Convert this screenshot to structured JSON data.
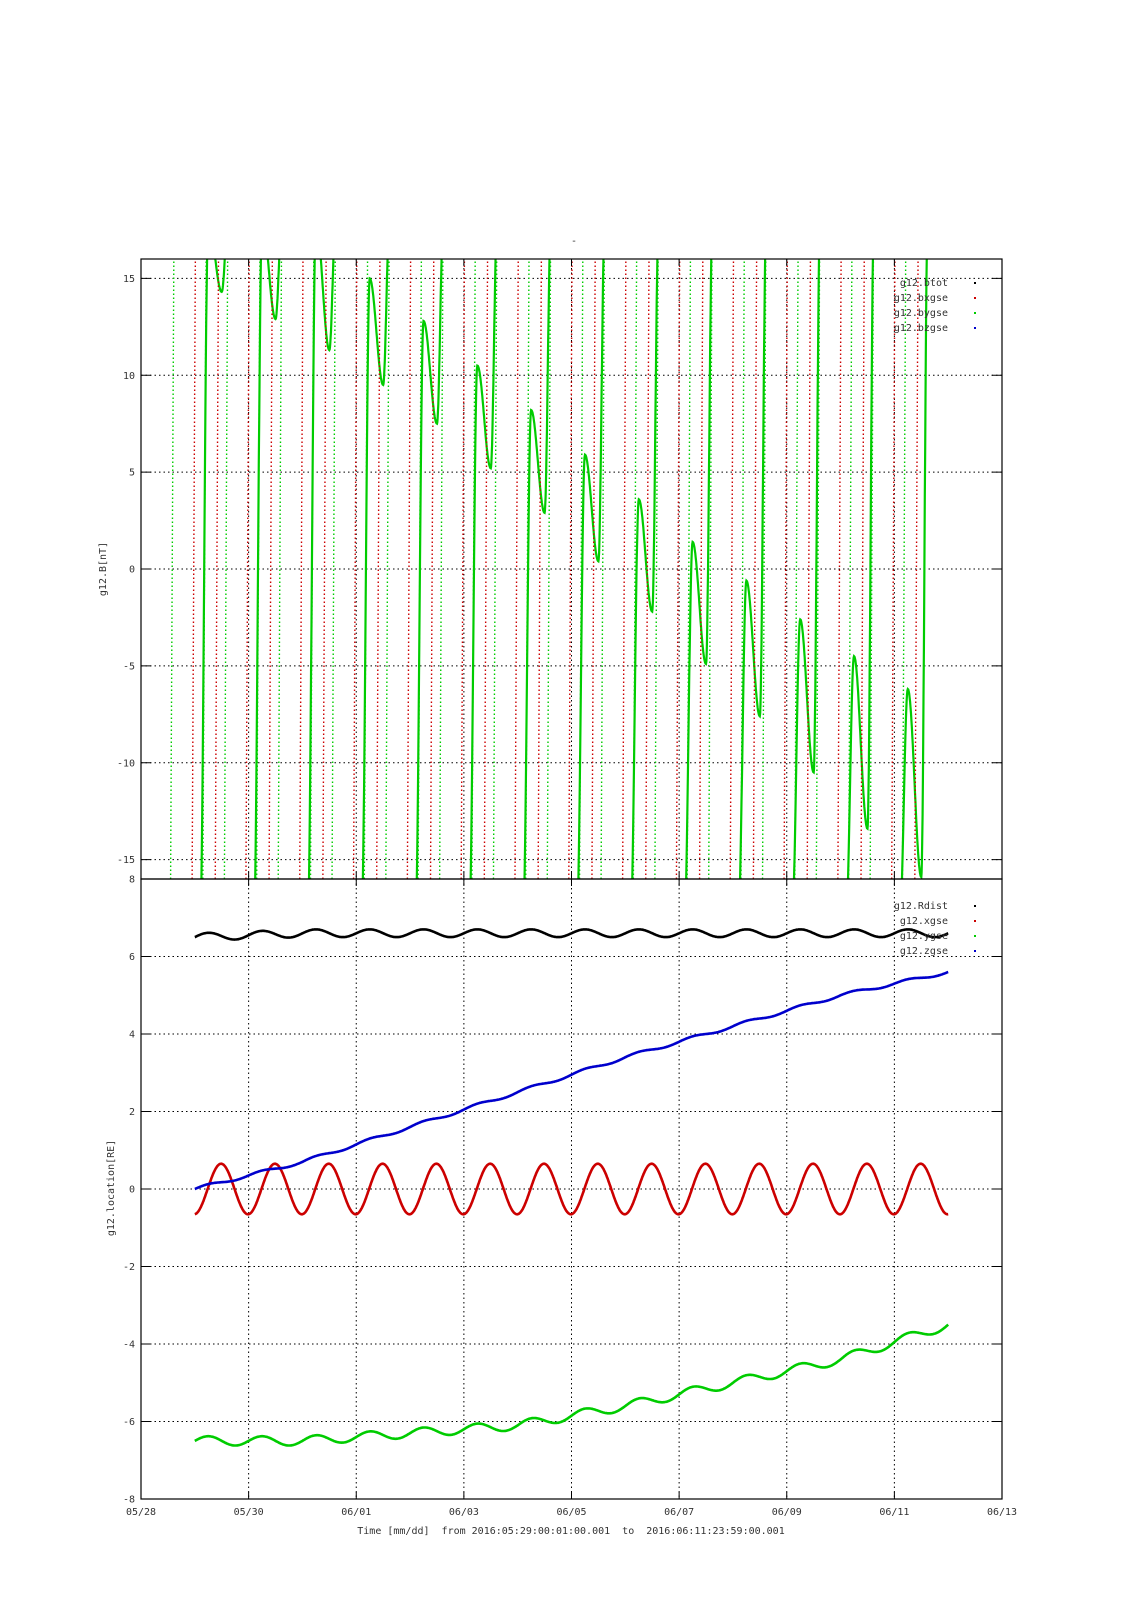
{
  "figure": {
    "top_title": "-",
    "time_caption": "Time [mm/dd]  from 2016:05:29:00:01:00.001  to  2016:06:11:23:59:00.001"
  },
  "chart_data": [
    {
      "type": "line",
      "name": "top-panel",
      "ylabel": "g12.B[nT]",
      "xlabel": "",
      "ylim": [
        -16,
        16
      ],
      "yticks": [
        -15,
        -10,
        -5,
        0,
        5,
        10,
        15
      ],
      "grid": true,
      "legend_placement": "top-right",
      "legend": [
        "g12.btot",
        "g12.bxgse",
        "g12.bygse",
        "g12.bzgse"
      ],
      "legend_colors": [
        "#000000",
        "#cc0000",
        "#00cc00",
        "#0000cc"
      ],
      "series": [
        {
          "name": "g12.bygse",
          "color": "#00cc00",
          "note_in_view_local_minima": [
            {
              "x": "05/29 12:00",
              "y": 14.3
            },
            {
              "x": "05/30 12:00",
              "y": 12.9
            },
            {
              "x": "05/31 12:00",
              "y": 11.3
            },
            {
              "x": "06/01 12:00",
              "y": 9.5
            },
            {
              "x": "06/02 12:00",
              "y": 7.5
            },
            {
              "x": "06/03 12:00",
              "y": 5.2
            },
            {
              "x": "06/04 12:00",
              "y": 2.9
            },
            {
              "x": "06/05 12:00",
              "y": 0.4
            },
            {
              "x": "06/06 12:00",
              "y": -2.2
            },
            {
              "x": "06/07 12:00",
              "y": -4.9
            },
            {
              "x": "06/08 12:00",
              "y": -7.6
            },
            {
              "x": "06/09 12:00",
              "y": -10.5
            },
            {
              "x": "06/10 12:00",
              "y": -13.4
            },
            {
              "x": "06/11 12:00",
              "y": -15.9
            }
          ],
          "in_view_local_maxima": [
            {
              "x": "06/01 06:00",
              "y": 15.0
            },
            {
              "x": "06/02 06:00",
              "y": 12.8
            },
            {
              "x": "06/03 06:00",
              "y": 10.5
            },
            {
              "x": "06/04 06:00",
              "y": 8.2
            },
            {
              "x": "06/05 06:00",
              "y": 5.9
            },
            {
              "x": "06/06 06:00",
              "y": 3.6
            },
            {
              "x": "06/07 06:00",
              "y": 1.4
            },
            {
              "x": "06/08 06:00",
              "y": -0.6
            },
            {
              "x": "06/09 06:00",
              "y": -2.6
            },
            {
              "x": "06/10 06:00",
              "y": -4.5
            },
            {
              "x": "06/11 06:00",
              "y": -6.2
            }
          ]
        },
        {
          "name": "g12.bxgse",
          "color": "#cc0000",
          "note": "values exceed the plotted range except near-vertical crossings"
        }
      ]
    },
    {
      "type": "line",
      "name": "bottom-panel",
      "ylabel": "g12.location[RE]",
      "xlabel": "Time [mm/dd]",
      "ylim": [
        -8,
        8
      ],
      "yticks": [
        -8,
        -6,
        -4,
        -2,
        0,
        2,
        4,
        6,
        8
      ],
      "xticks": [
        "05/28",
        "05/30",
        "06/01",
        "06/03",
        "06/05",
        "06/07",
        "06/09",
        "06/11",
        "06/13"
      ],
      "xrange": [
        "2016-05-28",
        "2016-06-13"
      ],
      "grid": true,
      "legend_placement": "top-right",
      "legend": [
        "g12.Rdist",
        "g12.xgse",
        "g12.ygse",
        "g12.zgse"
      ],
      "legend_colors": [
        "#000000",
        "#cc0000",
        "#00cc00",
        "#0000cc"
      ],
      "series": [
        {
          "name": "g12.Rdist",
          "color": "#000000",
          "x": [
            "05/29",
            "05/31",
            "06/02",
            "06/04",
            "06/06",
            "06/08",
            "06/10",
            "06/12"
          ],
          "y": [
            6.5,
            6.6,
            6.6,
            6.6,
            6.6,
            6.6,
            6.6,
            6.6
          ],
          "daily_amplitude": 0.1
        },
        {
          "name": "g12.xgse",
          "color": "#cc0000",
          "x": [
            "05/29",
            "06/12"
          ],
          "y": [
            -0.6,
            -0.6
          ],
          "daily_amplitude": 0.65
        },
        {
          "name": "g12.ygse",
          "color": "#00cc00",
          "x": [
            "05/29",
            "05/31",
            "06/02",
            "06/04",
            "06/06",
            "06/08",
            "06/10",
            "06/12"
          ],
          "y": [
            -6.5,
            -6.5,
            -6.3,
            -6.1,
            -5.6,
            -5.0,
            -4.4,
            -3.5
          ],
          "daily_amplitude": 0.12
        },
        {
          "name": "g12.zgse",
          "color": "#0000cc",
          "x": [
            "05/29",
            "05/31",
            "06/02",
            "06/04",
            "06/06",
            "06/08",
            "06/10",
            "06/12"
          ],
          "y": [
            0.0,
            0.7,
            1.6,
            2.5,
            3.4,
            4.2,
            5.0,
            5.6
          ],
          "daily_amplitude": 0.04
        }
      ]
    }
  ]
}
